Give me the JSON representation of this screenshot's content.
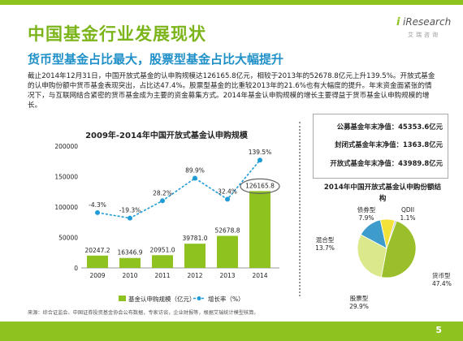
{
  "header": {
    "title": "中国基金行业发展现状",
    "subtitle": "货币型基金占比最大，股票型基金占比大幅提升"
  },
  "logo": {
    "brand": "iResearch",
    "brand_zh": "艾瑞咨询"
  },
  "paragraph": "截止2014年12月31日，中国开放式基金的认申购规模达126165.8亿元，相较于2013年的52678.8亿元上升139.5%。开放式基金的认申购份额中货币基金表现突出，占比达47.4%。股票型基金的比重较2013年的21.6%也有大幅度的提升。年末资金面紧张的情况下，与互联网结合紧密的货币基金成为主要的资金募集方式。2014年基金认申购规模的增长主要得益于货币基金认申购规模的增长。",
  "summary": {
    "public_fund": "公募基金年末净值：45353.6亿元",
    "closed_fund": "封闭式基金年末净值：1363.8亿元",
    "open_fund": "开放式基金年末净值：43989.8亿元"
  },
  "footer": {
    "source": "来源：综合证监会、中国证券投资基金协会公布数据，专家访谈，企业财报等，根据艾瑞统计模型核算。",
    "page_number": "5"
  },
  "colors": {
    "brand_green": "#8dc21f",
    "subtitle_blue": "#1f8fc7",
    "line": "#1f9bd7"
  },
  "chart_data": [
    {
      "type": "bar",
      "title": "2009年-2014年中国开放式基金认申购规模",
      "categories": [
        "2009",
        "2010",
        "2011",
        "2012",
        "2013",
        "2014"
      ],
      "series": [
        {
          "name": "基金认申购规模（亿元）",
          "values": [
            20247.2,
            16346.9,
            20951.0,
            39781.0,
            52678.8,
            126165.8
          ],
          "labels": [
            "20247.2",
            "16346.9",
            "20951.0",
            "39781.0",
            "52678.8",
            "126165.8"
          ]
        },
        {
          "name": "增长率（%）",
          "type": "line",
          "values": [
            -4.3,
            -19.3,
            28.2,
            89.9,
            32.4,
            139.5
          ],
          "labels": [
            "-4.3%",
            "-19.3%",
            "28.2%",
            "89.9%",
            "32.4%",
            "139.5%"
          ]
        }
      ],
      "yticks": [
        "0",
        "50000",
        "100000",
        "150000",
        "200000"
      ],
      "ylim": [
        0,
        200000
      ],
      "legend": "bottom",
      "grid": false
    },
    {
      "type": "pie",
      "title": "2014年中国开放式基金认申购份额结构",
      "slices": [
        {
          "name": "货币型",
          "value": 47.4,
          "label": "47.4%",
          "color": "#9bbf2a"
        },
        {
          "name": "股票型",
          "value": 29.9,
          "label": "29.9%",
          "color": "#dbe98c"
        },
        {
          "name": "混合型",
          "value": 13.7,
          "label": "13.7%",
          "color": "#3d9ccc"
        },
        {
          "name": "债券型",
          "value": 7.9,
          "label": "7.9%",
          "color": "#f2e23a"
        },
        {
          "name": "QDII",
          "value": 1.1,
          "label": "1.1%",
          "color": "#c8c8c8"
        }
      ]
    }
  ]
}
